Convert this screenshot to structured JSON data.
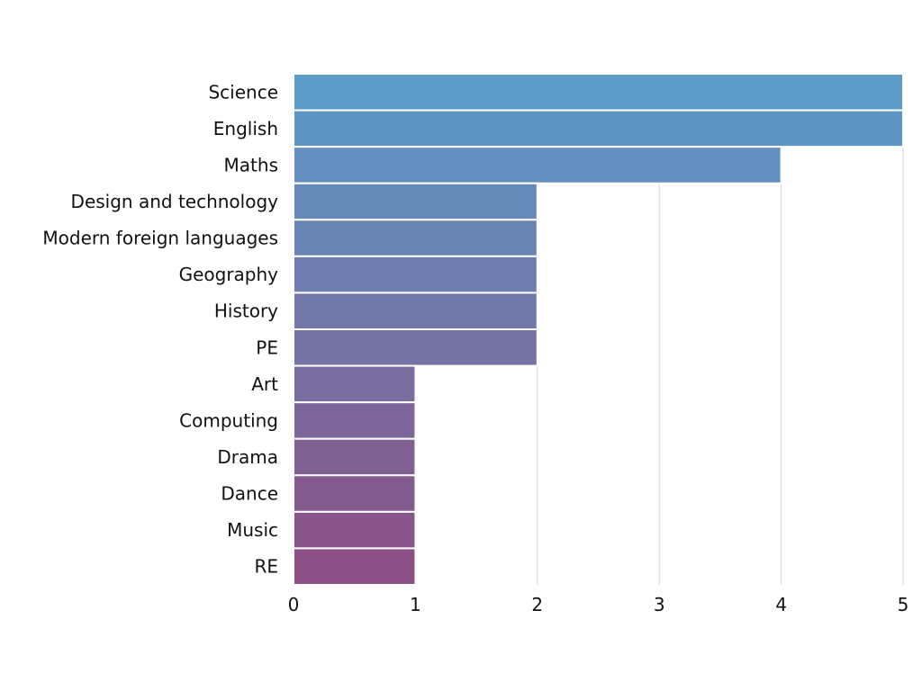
{
  "chart_data": {
    "type": "bar",
    "orientation": "horizontal",
    "categories": [
      "Science",
      "English",
      "Maths",
      "Design and technology",
      "Modern foreign languages",
      "Geography",
      "History",
      "PE",
      "Art",
      "Computing",
      "Drama",
      "Dance",
      "Music",
      "RE"
    ],
    "values": [
      5,
      5,
      4,
      2,
      2,
      2,
      2,
      2,
      1,
      1,
      1,
      1,
      1,
      1
    ],
    "xlim": [
      0,
      5
    ],
    "x_ticks": [
      "0",
      "1",
      "2",
      "3",
      "4",
      "5"
    ],
    "grid": "vertical",
    "legend": "none",
    "colors": {
      "bar_start": "#5b9bc8",
      "bar_end": "#8c4f85",
      "grid": "#d4d4d4",
      "text": "#111111"
    }
  }
}
